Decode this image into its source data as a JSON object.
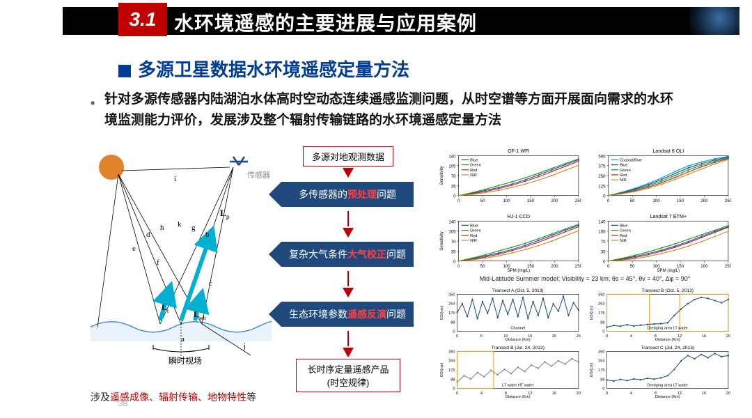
{
  "header": {
    "section_number": "3.1",
    "title": "水环境遥感的主要进展与应用案例"
  },
  "subtitle": "多源卫星数据水环境遥感定量方法",
  "body": "针对多源传感器内陆湖泊水体高时空动态连续遥感监测问题，从时空谱等方面开展面向需求的水环境监测能力评价，发展涉及整个辐射传输链路的水环境遥感定量方法",
  "page_number": "38",
  "colors": {
    "accent_red": "#c00000",
    "accent_blue": "#1f497d",
    "title_blue": "#003b95",
    "black": "#000000",
    "sun": "#e0822a",
    "water": "#4a8fd0"
  },
  "diagram": {
    "labels": {
      "sensor": "传感器",
      "ifov": "瞬时视场",
      "Lp": "L_p",
      "Lt": "L_t",
      "Lwb": "L_wb",
      "letters": [
        "a",
        "b",
        "c",
        "d",
        "e",
        "f",
        "g",
        "h",
        "i",
        "j",
        "k"
      ]
    },
    "caption_prefix": "涉及",
    "caption_red": "遥感成像、辐射传输、地物特性",
    "caption_suffix": "等"
  },
  "flow": {
    "top_box": "多源对地观测数据",
    "steps": [
      {
        "pre": "多传感器的",
        "red": "预处理",
        "post": "问题"
      },
      {
        "pre": "复杂大气条件",
        "red": "大气校正",
        "post": "问题"
      },
      {
        "pre": "生态环境参数",
        "red": "遥感反演",
        "post": "问题"
      }
    ],
    "bottom_box_l1": "长时序定量遥感产品",
    "bottom_box_l2": "(时空规律)"
  },
  "charts_top": [
    {
      "title": "GF-1 WFI",
      "legend": [
        "Blue",
        "Green",
        "Red",
        "NIR"
      ],
      "colors": [
        "#2040c0",
        "#10a010",
        "#d02020",
        "#c09030"
      ],
      "ylim": [
        0,
        140
      ],
      "xlim": [
        0,
        250
      ],
      "xlabel": "",
      "data": [
        [
          0,
          8,
          18,
          28,
          40,
          55,
          72,
          90,
          108,
          125
        ],
        [
          0,
          10,
          22,
          35,
          48,
          62,
          78,
          95,
          112,
          128
        ],
        [
          0,
          6,
          14,
          24,
          36,
          50,
          66,
          84,
          102,
          120
        ],
        [
          0,
          4,
          10,
          18,
          28,
          40,
          54,
          70,
          88,
          106
        ]
      ]
    },
    {
      "title": "Landsat 8 OLI",
      "legend": [
        "Coastal/Blue",
        "Blue",
        "Green",
        "Red",
        "NIR"
      ],
      "colors": [
        "#00a0c0",
        "#2040c0",
        "#10a010",
        "#d02020",
        "#c09030"
      ],
      "ylim": [
        0,
        500
      ],
      "xlim": [
        0,
        250
      ],
      "xlabel": "",
      "data": [
        [
          0,
          40,
          90,
          150,
          220,
          300,
          370,
          420,
          460,
          490
        ],
        [
          0,
          35,
          80,
          135,
          200,
          275,
          345,
          400,
          445,
          480
        ],
        [
          0,
          30,
          70,
          120,
          180,
          250,
          320,
          380,
          430,
          470
        ],
        [
          0,
          25,
          60,
          105,
          160,
          225,
          295,
          360,
          415,
          460
        ],
        [
          0,
          20,
          50,
          90,
          140,
          200,
          265,
          330,
          395,
          450
        ]
      ]
    },
    {
      "title": "HJ-1 CCD",
      "legend": [
        "Blue",
        "Green",
        "Red",
        "NIR"
      ],
      "colors": [
        "#2040c0",
        "#10a010",
        "#d02020",
        "#c09030"
      ],
      "ylim": [
        0,
        140
      ],
      "xlim": [
        0,
        250
      ],
      "xlabel": "SPM (mg/L)",
      "data": [
        [
          0,
          8,
          18,
          28,
          40,
          55,
          72,
          90,
          108,
          125
        ],
        [
          0,
          10,
          22,
          35,
          48,
          62,
          78,
          95,
          112,
          128
        ],
        [
          0,
          6,
          14,
          24,
          36,
          50,
          66,
          84,
          102,
          120
        ],
        [
          0,
          4,
          10,
          18,
          28,
          40,
          54,
          70,
          88,
          106
        ]
      ]
    },
    {
      "title": "Landsat 7 ETM+",
      "legend": [
        "Blue",
        "Green",
        "Red",
        "NIR"
      ],
      "colors": [
        "#2040c0",
        "#10a010",
        "#d02020",
        "#c09030"
      ],
      "ylim": [
        0,
        140
      ],
      "xlim": [
        0,
        250
      ],
      "xlabel": "SPM (mg/L)",
      "data": [
        [
          0,
          7,
          16,
          26,
          38,
          52,
          68,
          86,
          104,
          120
        ],
        [
          0,
          9,
          20,
          32,
          46,
          60,
          76,
          92,
          108,
          124
        ],
        [
          0,
          5,
          12,
          22,
          34,
          48,
          64,
          82,
          100,
          118
        ],
        [
          0,
          3,
          8,
          16,
          26,
          38,
          52,
          68,
          86,
          104
        ]
      ]
    }
  ],
  "charts_top_ylabel": "Sensitivity",
  "mid_caption": "Mid-Latitude Summer model; Visibility = 23 km; θs = 45°, θv = 40°, Δφ = 90°",
  "charts_bot": [
    {
      "title": "Transect A (Oct. 5, 2013)",
      "xlabel": "Distance (Km)",
      "ylabel": "GSI(cm)",
      "xlim": [
        0,
        25
      ],
      "ylim": [
        0,
        350
      ],
      "box_label": "Channel",
      "data": [
        180,
        260,
        140,
        300,
        120,
        280,
        170,
        310,
        130,
        290,
        160,
        300,
        140,
        320,
        120,
        280,
        150,
        310,
        130,
        260,
        190,
        330,
        150,
        270,
        200
      ],
      "color": "#1f497d"
    },
    {
      "title": "Transect B (Oct. 5, 2013)",
      "xlabel": "Distance (Km)",
      "ylabel": "GSI(cm)",
      "xlim": [
        0,
        20
      ],
      "ylim": [
        0,
        350
      ],
      "box_label": "Dredging area   LT water",
      "data": [
        40,
        55,
        48,
        62,
        50,
        58,
        65,
        70,
        72,
        80,
        150,
        210,
        260,
        300,
        320,
        310,
        290,
        270,
        300
      ],
      "color": "#1f497d",
      "zones": [
        [
          0,
          0.35,
          "Estuary"
        ],
        [
          0.6,
          1.0,
          "LT water"
        ]
      ]
    },
    {
      "title": "Transect B (Jul. 24, 2013)",
      "xlabel": "Distance (Km)",
      "ylabel": "GSI(cm)",
      "xlim": [
        0,
        20
      ],
      "ylim": [
        0,
        350
      ],
      "box_label": "LT water   HT water",
      "data": [
        60,
        120,
        90,
        150,
        110,
        170,
        130,
        180,
        140,
        200,
        160,
        220,
        190,
        250,
        210,
        260,
        230,
        280,
        250
      ],
      "color": "#808080",
      "zones": [
        [
          0,
          0.3,
          "Estuary"
        ]
      ]
    },
    {
      "title": "Transect C (Jul. 24, 2013)",
      "xlabel": "Distance (Km)",
      "ylabel": "GSI(cm)",
      "xlim": [
        0,
        20
      ],
      "ylim": [
        0,
        350
      ],
      "box_label": "Dredging area   LT water",
      "data": [
        80,
        70,
        85,
        75,
        90,
        82,
        95,
        88,
        100,
        120,
        180,
        260,
        310,
        280,
        320,
        290,
        330,
        300,
        310
      ],
      "color": "#1f497d"
    }
  ]
}
